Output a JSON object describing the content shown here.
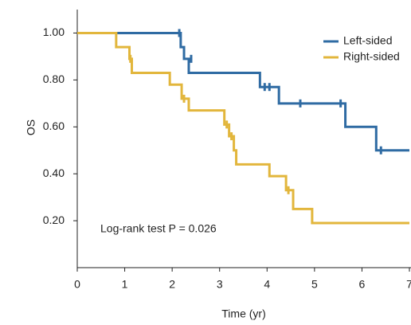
{
  "chart_data": {
    "type": "step",
    "x_label": "Time (yr)",
    "y_label": "OS",
    "annotation": "Log-rank test P = 0.026",
    "xlim": [
      0,
      7
    ],
    "ylim": [
      0,
      1.1
    ],
    "xticks": [
      0,
      1,
      2,
      3,
      4,
      5,
      6,
      7
    ],
    "yticks": [
      {
        "value": 0.2,
        "label": "0.20"
      },
      {
        "value": 0.4,
        "label": "0.40"
      },
      {
        "value": 0.6,
        "label": "0.60"
      },
      {
        "value": 0.8,
        "label": "0.80"
      },
      {
        "value": 1.0,
        "label": "1.00"
      }
    ],
    "legend": "upper right",
    "series": [
      {
        "name": "Left-sided",
        "color": "#2f6ba3",
        "x": [
          0,
          2.18,
          2.25,
          2.35,
          3.85,
          4.25,
          5.65,
          6.3,
          7
        ],
        "values": [
          1.0,
          0.94,
          0.89,
          0.83,
          0.77,
          0.7,
          0.6,
          0.5,
          0.5
        ],
        "censor_x": [
          2.15,
          2.4,
          3.95,
          4.05,
          4.7,
          5.55,
          6.4
        ],
        "censor_values": [
          1.0,
          0.89,
          0.77,
          0.77,
          0.7,
          0.7,
          0.5
        ]
      },
      {
        "name": "Right-sided",
        "color": "#e2b63c",
        "x": [
          0,
          0.82,
          1.1,
          1.15,
          1.95,
          2.2,
          2.35,
          3.1,
          3.2,
          3.3,
          3.35,
          4.05,
          4.4,
          4.55,
          4.95,
          7
        ],
        "values": [
          1.0,
          0.94,
          0.89,
          0.83,
          0.78,
          0.72,
          0.67,
          0.61,
          0.56,
          0.5,
          0.44,
          0.39,
          0.33,
          0.25,
          0.19,
          0.19
        ],
        "censor_x": [
          1.12,
          2.25,
          3.15,
          3.25,
          4.45
        ],
        "censor_values": [
          0.89,
          0.72,
          0.61,
          0.56,
          0.33
        ]
      }
    ]
  }
}
